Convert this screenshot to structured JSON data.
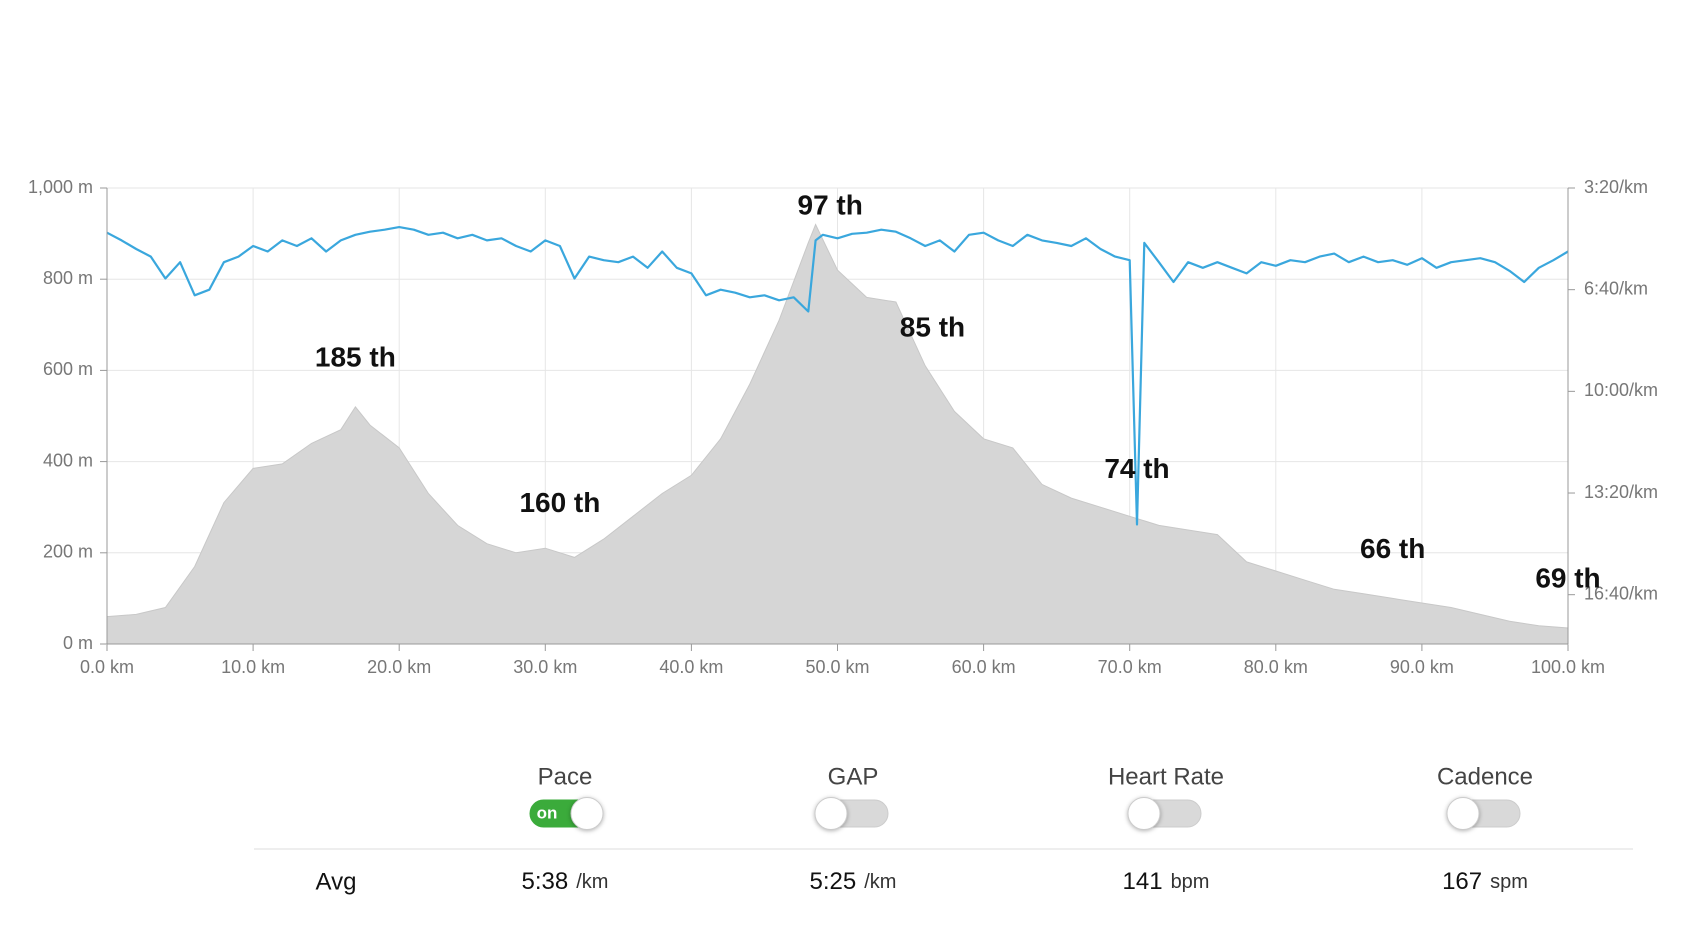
{
  "chart_data": {
    "type": "elevation-pace",
    "xlim": [
      0,
      100
    ],
    "xticks": [
      {
        "value": 0,
        "label": "0.0 km"
      },
      {
        "value": 10,
        "label": "10.0 km"
      },
      {
        "value": 20,
        "label": "20.0 km"
      },
      {
        "value": 30,
        "label": "30.0 km"
      },
      {
        "value": 40,
        "label": "40.0 km"
      },
      {
        "value": 50,
        "label": "50.0 km"
      },
      {
        "value": 60,
        "label": "60.0 km"
      },
      {
        "value": 70,
        "label": "70.0 km"
      },
      {
        "value": 80,
        "label": "80.0 km"
      },
      {
        "value": 90,
        "label": "90.0 km"
      },
      {
        "value": 100,
        "label": "100.0 km"
      }
    ],
    "ylim": [
      0,
      1000
    ],
    "yticks": [
      {
        "value": 0,
        "label": "0 m"
      },
      {
        "value": 200,
        "label": "200 m"
      },
      {
        "value": 400,
        "label": "400 m"
      },
      {
        "value": 600,
        "label": "600 m"
      },
      {
        "value": 800,
        "label": "800 m"
      },
      {
        "value": 1000,
        "label": "1,000 m"
      }
    ],
    "y2lim": [
      1097,
      200
    ],
    "y2ticks": [
      {
        "value": 200,
        "label": "3:20/km"
      },
      {
        "value": 400,
        "label": "6:40/km"
      },
      {
        "value": 600,
        "label": "10:00/km"
      },
      {
        "value": 800,
        "label": "13:20/km"
      },
      {
        "value": 1000,
        "label": "16:40/km"
      }
    ],
    "grid": true,
    "series": [
      {
        "name": "Elevation",
        "color": "#d6d6d6",
        "x": [
          0,
          2,
          4,
          6,
          8,
          10,
          12,
          14,
          16,
          17,
          18,
          20,
          22,
          24,
          26,
          28,
          30,
          32,
          34,
          36,
          38,
          40,
          42,
          44,
          46,
          48,
          48.5,
          50,
          52,
          54,
          56,
          58,
          60,
          62,
          64,
          66,
          68,
          70,
          72,
          74,
          76,
          78,
          80,
          82,
          84,
          86,
          88,
          90,
          92,
          94,
          96,
          98,
          100
        ],
        "values": [
          60,
          65,
          80,
          170,
          310,
          385,
          395,
          440,
          470,
          520,
          480,
          430,
          330,
          260,
          220,
          200,
          210,
          190,
          230,
          280,
          330,
          370,
          450,
          570,
          710,
          880,
          920,
          820,
          760,
          750,
          610,
          510,
          450,
          430,
          350,
          320,
          300,
          280,
          260,
          250,
          240,
          180,
          160,
          140,
          120,
          110,
          100,
          90,
          80,
          65,
          50,
          40,
          35
        ]
      },
      {
        "name": "Pace",
        "color": "#3aa7dd",
        "axis": "y2",
        "x": [
          0,
          1,
          2,
          3,
          4,
          5,
          6,
          7,
          8,
          9,
          10,
          11,
          12,
          13,
          14,
          15,
          16,
          17,
          18,
          19,
          20,
          21,
          22,
          23,
          24,
          25,
          26,
          27,
          28,
          29,
          30,
          31,
          32,
          33,
          34,
          35,
          36,
          37,
          38,
          39,
          40,
          41,
          42,
          43,
          44,
          45,
          46,
          47,
          48,
          48.5,
          49,
          50,
          51,
          52,
          53,
          54,
          55,
          56,
          57,
          58,
          59,
          60,
          61,
          62,
          63,
          64,
          65,
          66,
          67,
          68,
          69,
          70,
          70.5,
          71,
          72,
          73,
          74,
          75,
          76,
          77,
          78,
          79,
          80,
          81,
          82,
          83,
          84,
          85,
          86,
          87,
          88,
          89,
          90,
          91,
          92,
          93,
          94,
          95,
          96,
          97,
          98,
          99,
          100
        ],
        "values": [
          288,
          303,
          320,
          335,
          378,
          346,
          411,
          400,
          346,
          335,
          314,
          325,
          303,
          314,
          299,
          325,
          303,
          292,
          286,
          282,
          277,
          282,
          292,
          288,
          299,
          292,
          303,
          299,
          314,
          325,
          303,
          314,
          378,
          335,
          342,
          346,
          335,
          357,
          325,
          357,
          368,
          411,
          400,
          406,
          415,
          411,
          421,
          415,
          443,
          303,
          292,
          299,
          290,
          288,
          282,
          286,
          299,
          314,
          303,
          325,
          292,
          288,
          303,
          314,
          292,
          303,
          308,
          314,
          299,
          320,
          335,
          342,
          862,
          308,
          346,
          385,
          346,
          357,
          346,
          357,
          368,
          346,
          353,
          342,
          346,
          335,
          329,
          346,
          335,
          346,
          342,
          351,
          338,
          357,
          346,
          342,
          338,
          346,
          363,
          385,
          357,
          342,
          325
        ]
      }
    ],
    "annotations": [
      {
        "text": "185 th",
        "x": 17
      },
      {
        "text": "160 th",
        "x": 31
      },
      {
        "text": "97 th",
        "x": 49.5
      },
      {
        "text": "85 th",
        "x": 56.5
      },
      {
        "text": "74 th",
        "x": 70.5
      },
      {
        "text": "66 th",
        "x": 88
      },
      {
        "text": "69 th",
        "x": 100
      }
    ]
  },
  "metrics": [
    {
      "name": "Pace",
      "enabled": true,
      "toggle_label": "on",
      "avg": "5:38",
      "unit": "/km"
    },
    {
      "name": "GAP",
      "enabled": false,
      "avg": "5:25",
      "unit": "/km"
    },
    {
      "name": "Heart Rate",
      "enabled": false,
      "avg": "141",
      "unit": "bpm"
    },
    {
      "name": "Cadence",
      "enabled": false,
      "avg": "167",
      "unit": "spm"
    }
  ],
  "summary_label": "Avg"
}
